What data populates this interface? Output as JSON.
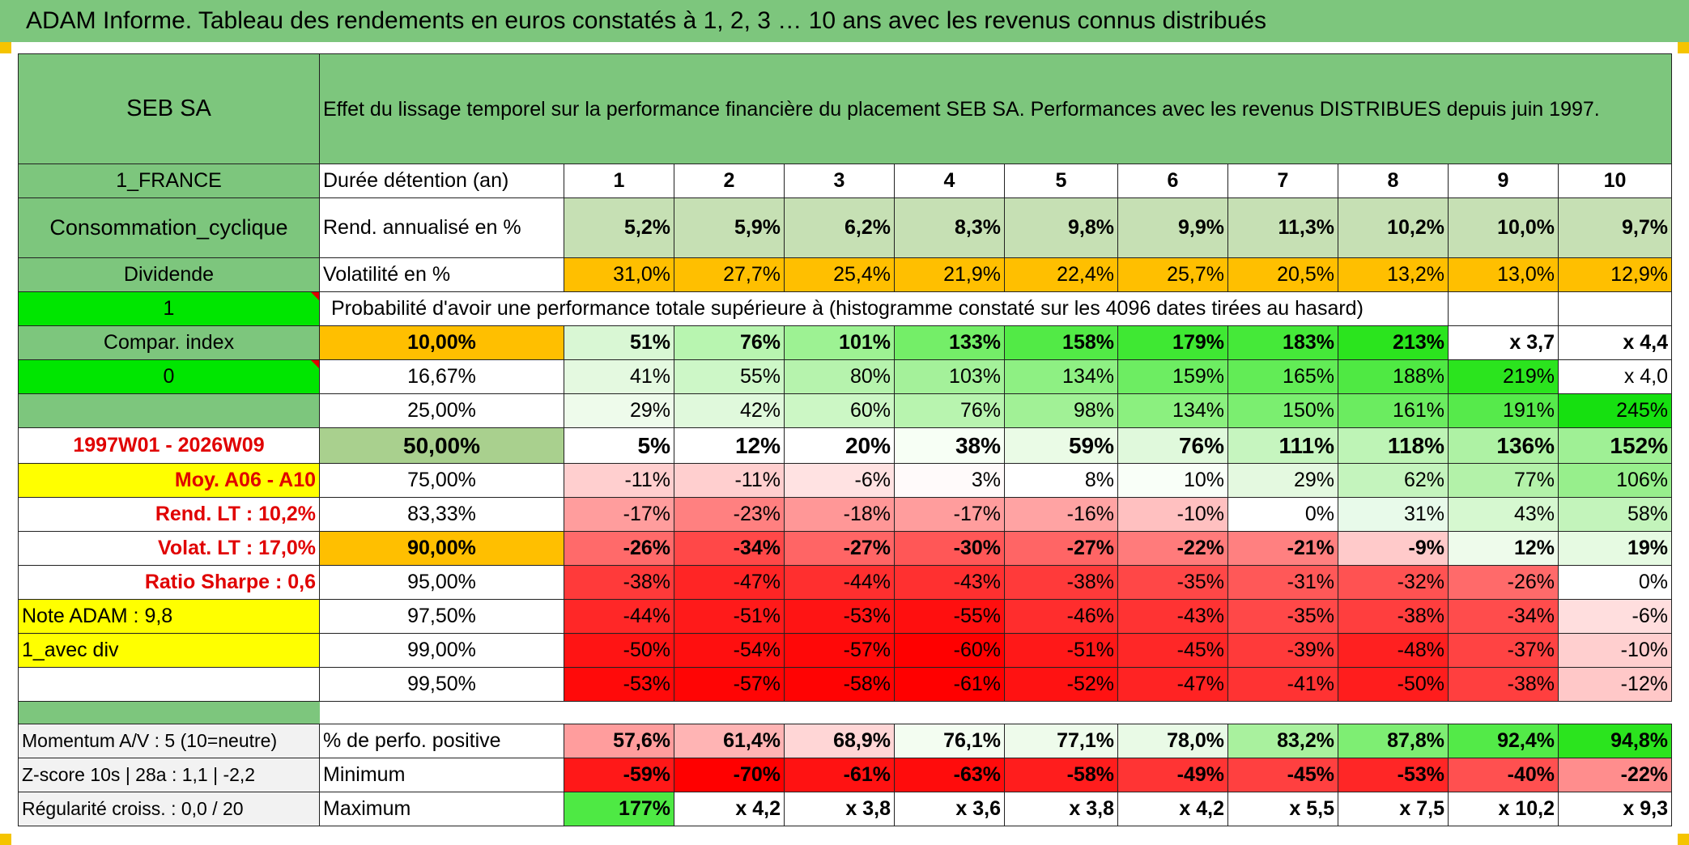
{
  "banner": {
    "title": "ADAM Informe. Tableau des rendements en euros constatés à 1, 2, 3 … 10 ans avec les revenus connus distribués"
  },
  "colors": {
    "green_header": "#7dc67d",
    "bright_green": "#00e600",
    "yellow": "#ffff00",
    "orange": "#ffbf00",
    "red_text": "#e00000"
  },
  "header": {
    "company": "SEB SA",
    "description": "Effet du lissage temporel sur la performance financière du placement SEB SA. Performances avec les revenus DISTRIBUES depuis juin 1997."
  },
  "left": {
    "country": "1_FRANCE",
    "sector": "Consommation_cyclique",
    "dividend_label": "Dividende",
    "one": "1",
    "compar_index": "Compar. index",
    "zero": "0",
    "period": "1997W01 - 2026W09",
    "moy": "Moy. A06 - A10",
    "rend_lt": "Rend. LT :    10,2%",
    "volat_lt": "Volat. LT :    17,0%",
    "sharpe": "Ratio Sharpe :    0,6",
    "note": "Note ADAM : 9,8",
    "avec_div": "1_avec div"
  },
  "stats": {
    "duree_label": "Durée détention (an)",
    "years": [
      "1",
      "2",
      "3",
      "4",
      "5",
      "6",
      "7",
      "8",
      "9",
      "10"
    ],
    "rend_label": "Rend. annualisé en %",
    "rend": [
      "5,2%",
      "5,9%",
      "6,2%",
      "8,3%",
      "9,8%",
      "9,9%",
      "11,3%",
      "10,2%",
      "10,0%",
      "9,7%"
    ],
    "vol_label": "Volatilité en %",
    "vol": [
      "31,0%",
      "27,7%",
      "25,4%",
      "21,9%",
      "22,4%",
      "25,7%",
      "20,5%",
      "13,2%",
      "13,0%",
      "12,9%"
    ],
    "prob_label": "Probabilité d'avoir une performance totale supérieure à (histogramme constaté sur les 4096 dates tirées au hasard)"
  },
  "quantiles": [
    {
      "q": "10,00%",
      "values": [
        "51%",
        "76%",
        "101%",
        "133%",
        "158%",
        "179%",
        "183%",
        "213%",
        "x 3,7",
        "x 4,4"
      ]
    },
    {
      "q": "16,67%",
      "values": [
        "41%",
        "55%",
        "80%",
        "103%",
        "134%",
        "159%",
        "165%",
        "188%",
        "219%",
        "x 4,0"
      ]
    },
    {
      "q": "25,00%",
      "values": [
        "29%",
        "42%",
        "60%",
        "76%",
        "98%",
        "134%",
        "150%",
        "161%",
        "191%",
        "245%"
      ]
    },
    {
      "q": "50,00%",
      "values": [
        "5%",
        "12%",
        "20%",
        "38%",
        "59%",
        "76%",
        "111%",
        "118%",
        "136%",
        "152%"
      ]
    },
    {
      "q": "75,00%",
      "values": [
        "-11%",
        "-11%",
        "-6%",
        "3%",
        "8%",
        "10%",
        "29%",
        "62%",
        "77%",
        "106%"
      ]
    },
    {
      "q": "83,33%",
      "values": [
        "-17%",
        "-23%",
        "-18%",
        "-17%",
        "-16%",
        "-10%",
        "0%",
        "31%",
        "43%",
        "58%"
      ]
    },
    {
      "q": "90,00%",
      "values": [
        "-26%",
        "-34%",
        "-27%",
        "-30%",
        "-27%",
        "-22%",
        "-21%",
        "-9%",
        "12%",
        "19%"
      ]
    },
    {
      "q": "95,00%",
      "values": [
        "-38%",
        "-47%",
        "-44%",
        "-43%",
        "-38%",
        "-35%",
        "-31%",
        "-32%",
        "-26%",
        "0%"
      ]
    },
    {
      "q": "97,50%",
      "values": [
        "-44%",
        "-51%",
        "-53%",
        "-55%",
        "-46%",
        "-43%",
        "-35%",
        "-38%",
        "-34%",
        "-6%"
      ]
    },
    {
      "q": "99,00%",
      "values": [
        "-50%",
        "-54%",
        "-57%",
        "-60%",
        "-51%",
        "-45%",
        "-39%",
        "-48%",
        "-37%",
        "-10%"
      ]
    },
    {
      "q": "99,50%",
      "values": [
        "-53%",
        "-57%",
        "-58%",
        "-61%",
        "-52%",
        "-47%",
        "-41%",
        "-50%",
        "-38%",
        "-12%"
      ]
    }
  ],
  "bottom": {
    "momentum": "Momentum A/V : 5 (10=neutre)",
    "zscore": "Z-score 10s | 28a : 1,1 | -2,2",
    "regularite": "Régularité croiss. : 0,0 / 20",
    "pos_label": "% de perfo. positive",
    "pos": [
      "57,6%",
      "61,4%",
      "68,9%",
      "76,1%",
      "77,1%",
      "78,0%",
      "83,2%",
      "87,8%",
      "92,4%",
      "94,8%"
    ],
    "min_label": "Minimum",
    "min": [
      "-59%",
      "-70%",
      "-61%",
      "-63%",
      "-58%",
      "-49%",
      "-45%",
      "-53%",
      "-40%",
      "-22%"
    ],
    "max_label": "Maximum",
    "max": [
      "177%",
      "x 4,2",
      "x 3,8",
      "x 3,6",
      "x 3,8",
      "x 4,2",
      "x 5,5",
      "x 7,5",
      "x 10,2",
      "x 9,3"
    ]
  }
}
